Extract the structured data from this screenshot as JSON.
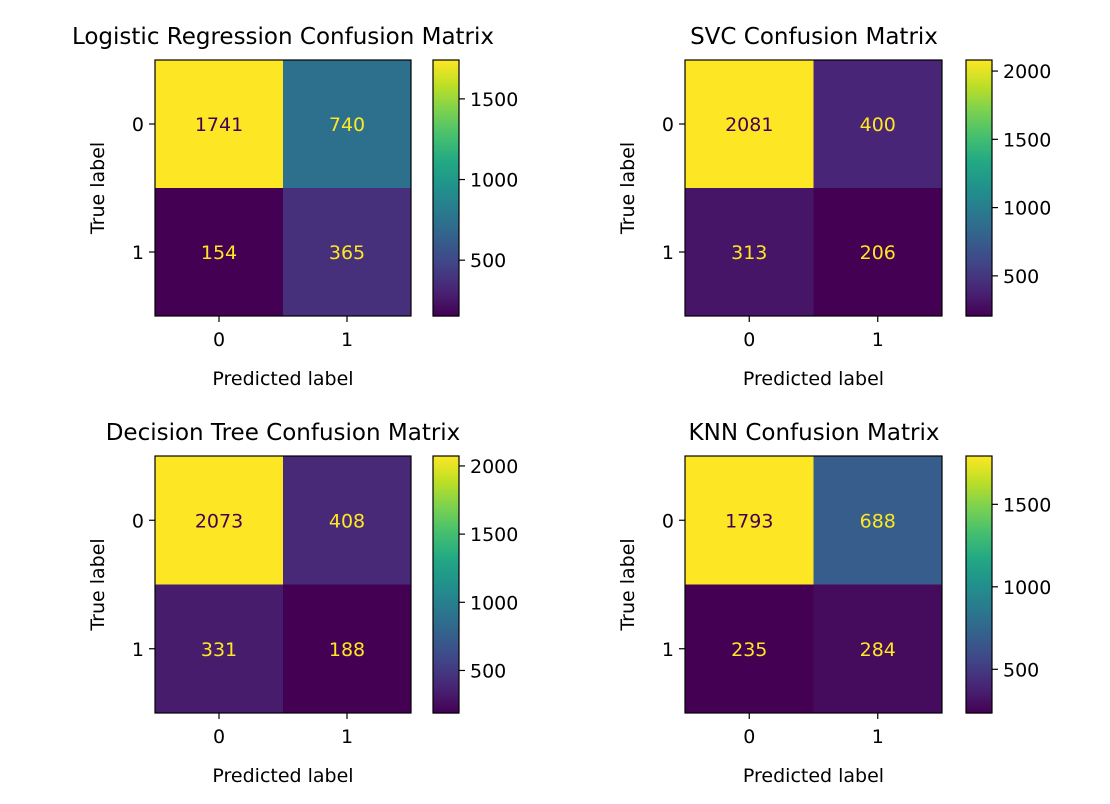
{
  "chart_data": [
    {
      "type": "heatmap",
      "title": "Logistic Regression Confusion Matrix",
      "xlabel": "Predicted label",
      "ylabel": "True label",
      "x_categories": [
        "0",
        "1"
      ],
      "y_categories": [
        "0",
        "1"
      ],
      "values": [
        [
          1741,
          740
        ],
        [
          154,
          365
        ]
      ],
      "colormap": "viridis",
      "colorbar_ticks": [
        500,
        1000,
        1500
      ]
    },
    {
      "type": "heatmap",
      "title": "SVC Confusion Matrix",
      "xlabel": "Predicted label",
      "ylabel": "True label",
      "x_categories": [
        "0",
        "1"
      ],
      "y_categories": [
        "0",
        "1"
      ],
      "values": [
        [
          2081,
          400
        ],
        [
          313,
          206
        ]
      ],
      "colormap": "viridis",
      "colorbar_ticks": [
        500,
        1000,
        1500,
        2000
      ]
    },
    {
      "type": "heatmap",
      "title": "Decision Tree Confusion Matrix",
      "xlabel": "Predicted label",
      "ylabel": "True label",
      "x_categories": [
        "0",
        "1"
      ],
      "y_categories": [
        "0",
        "1"
      ],
      "values": [
        [
          2073,
          408
        ],
        [
          331,
          188
        ]
      ],
      "colormap": "viridis",
      "colorbar_ticks": [
        500,
        1000,
        1500,
        2000
      ]
    },
    {
      "type": "heatmap",
      "title": "KNN Confusion Matrix",
      "xlabel": "Predicted label",
      "ylabel": "True label",
      "x_categories": [
        "0",
        "1"
      ],
      "y_categories": [
        "0",
        "1"
      ],
      "values": [
        [
          1793,
          688
        ],
        [
          235,
          284
        ]
      ],
      "colormap": "viridis",
      "colorbar_ticks": [
        500,
        1000,
        1500
      ]
    }
  ],
  "colors": {
    "text_on_dark": "#fde725",
    "text_on_light": "#440154",
    "axis": "#000000",
    "background": "#ffffff"
  }
}
